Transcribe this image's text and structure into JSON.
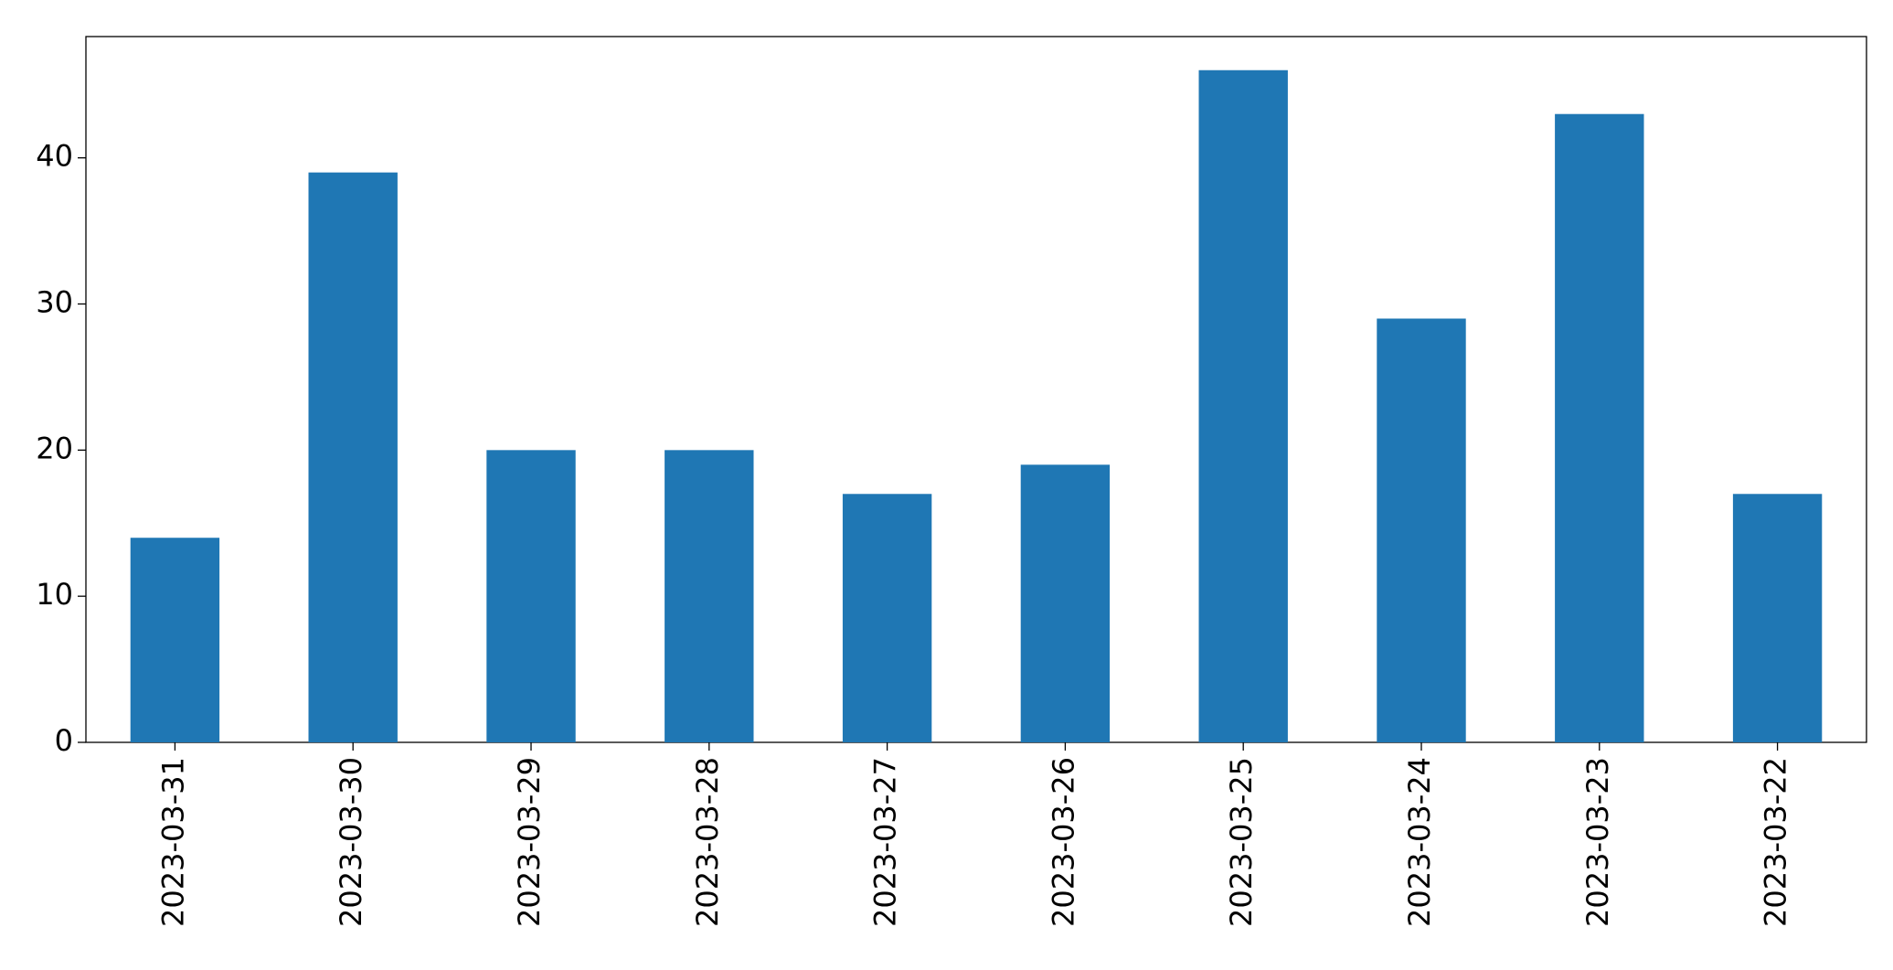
{
  "chart_data": {
    "type": "bar",
    "categories": [
      "2023-03-31",
      "2023-03-30",
      "2023-03-29",
      "2023-03-28",
      "2023-03-27",
      "2023-03-26",
      "2023-03-25",
      "2023-03-24",
      "2023-03-23",
      "2023-03-22"
    ],
    "values": [
      14,
      39,
      20,
      20,
      17,
      19,
      46,
      29,
      43,
      17
    ],
    "color": "#1f77b4",
    "ylim": [
      0,
      48.3
    ],
    "yticks": [
      0,
      10,
      20,
      30,
      40
    ],
    "grid": false
  }
}
